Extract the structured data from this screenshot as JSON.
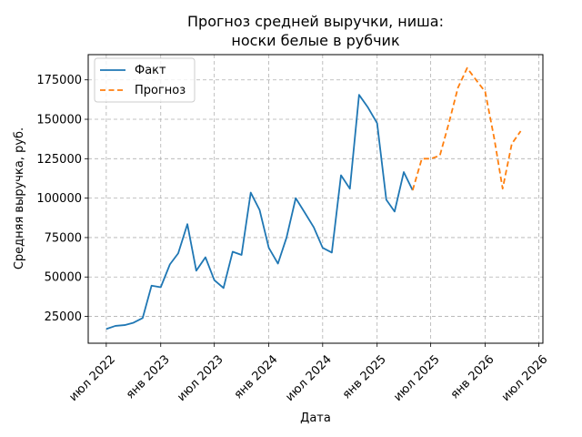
{
  "chart_data": {
    "type": "line",
    "title_line1": "Прогноз средней выручки, ниша:",
    "title_line2": "носки белые в рубчик",
    "xlabel": "Дата",
    "ylabel": "Средняя выручка, руб.",
    "ylim": [
      8000,
      191000
    ],
    "xlim": [
      "2022-05-01",
      "2026-07-15"
    ],
    "grid": true,
    "legend_position": "top-left",
    "x_ticks": [
      {
        "date": "2022-07-01",
        "label": "июл 2022"
      },
      {
        "date": "2023-01-01",
        "label": "янв 2023"
      },
      {
        "date": "2023-07-01",
        "label": "июл 2023"
      },
      {
        "date": "2024-01-01",
        "label": "янв 2024"
      },
      {
        "date": "2024-07-01",
        "label": "июл 2024"
      },
      {
        "date": "2025-01-01",
        "label": "янв 2025"
      },
      {
        "date": "2025-07-01",
        "label": "июл 2025"
      },
      {
        "date": "2026-01-01",
        "label": "янв 2026"
      },
      {
        "date": "2026-07-01",
        "label": "июл 2026"
      }
    ],
    "y_ticks": [
      {
        "value": 25000,
        "label": "25000"
      },
      {
        "value": 50000,
        "label": "50000"
      },
      {
        "value": 75000,
        "label": "75000"
      },
      {
        "value": 100000,
        "label": "100000"
      },
      {
        "value": 125000,
        "label": "125000"
      },
      {
        "value": 150000,
        "label": "150000"
      },
      {
        "value": 175000,
        "label": "175000"
      }
    ],
    "series": [
      {
        "name": "Факт",
        "color": "#1f77b4",
        "style": "solid",
        "points": [
          {
            "x": "2022-07-01",
            "y": 17000
          },
          {
            "x": "2022-08-01",
            "y": 19000
          },
          {
            "x": "2022-09-01",
            "y": 19500
          },
          {
            "x": "2022-10-01",
            "y": 21000
          },
          {
            "x": "2022-11-01",
            "y": 24000
          },
          {
            "x": "2022-12-01",
            "y": 44500
          },
          {
            "x": "2023-01-01",
            "y": 43500
          },
          {
            "x": "2023-02-01",
            "y": 58000
          },
          {
            "x": "2023-03-01",
            "y": 65000
          },
          {
            "x": "2023-04-01",
            "y": 83500
          },
          {
            "x": "2023-05-01",
            "y": 54000
          },
          {
            "x": "2023-06-01",
            "y": 62500
          },
          {
            "x": "2023-07-01",
            "y": 48000
          },
          {
            "x": "2023-08-01",
            "y": 43000
          },
          {
            "x": "2023-09-01",
            "y": 66000
          },
          {
            "x": "2023-10-01",
            "y": 64000
          },
          {
            "x": "2023-11-01",
            "y": 103500
          },
          {
            "x": "2023-12-01",
            "y": 92500
          },
          {
            "x": "2024-01-01",
            "y": 68500
          },
          {
            "x": "2024-02-01",
            "y": 58500
          },
          {
            "x": "2024-03-01",
            "y": 75000
          },
          {
            "x": "2024-04-01",
            "y": 100000
          },
          {
            "x": "2024-05-01",
            "y": 91000
          },
          {
            "x": "2024-06-01",
            "y": 81500
          },
          {
            "x": "2024-07-01",
            "y": 68500
          },
          {
            "x": "2024-08-01",
            "y": 65500
          },
          {
            "x": "2024-09-01",
            "y": 114500
          },
          {
            "x": "2024-10-01",
            "y": 106000
          },
          {
            "x": "2024-11-01",
            "y": 165500
          },
          {
            "x": "2024-12-01",
            "y": 157500
          },
          {
            "x": "2025-01-01",
            "y": 147500
          },
          {
            "x": "2025-02-01",
            "y": 99000
          },
          {
            "x": "2025-03-01",
            "y": 91500
          },
          {
            "x": "2025-04-01",
            "y": 116500
          },
          {
            "x": "2025-05-01",
            "y": 105000
          }
        ]
      },
      {
        "name": "Прогноз",
        "color": "#ff7f0e",
        "style": "dashed",
        "points": [
          {
            "x": "2025-05-01",
            "y": 105000
          },
          {
            "x": "2025-06-01",
            "y": 125000
          },
          {
            "x": "2025-07-01",
            "y": 125000
          },
          {
            "x": "2025-08-01",
            "y": 127000
          },
          {
            "x": "2025-09-01",
            "y": 148000
          },
          {
            "x": "2025-10-01",
            "y": 170000
          },
          {
            "x": "2025-11-01",
            "y": 182500
          },
          {
            "x": "2025-12-01",
            "y": 175000
          },
          {
            "x": "2026-01-01",
            "y": 167500
          },
          {
            "x": "2026-02-01",
            "y": 137500
          },
          {
            "x": "2026-03-01",
            "y": 106000
          },
          {
            "x": "2026-04-01",
            "y": 134500
          },
          {
            "x": "2026-05-01",
            "y": 142500
          }
        ]
      }
    ]
  }
}
